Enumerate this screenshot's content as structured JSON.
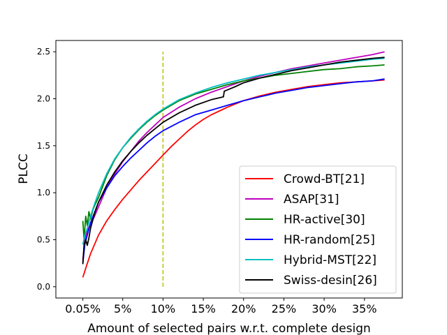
{
  "chart_data": {
    "type": "line",
    "title": "",
    "xlabel": "Amount of selected pairs w.r.t. complete design",
    "ylabel": "PLCC",
    "xlim": [
      -3.3,
      39.7
    ],
    "ylim": [
      -0.12,
      2.62
    ],
    "x_ticks": [
      {
        "value": 0.05,
        "label": "0.05%"
      },
      {
        "value": 5,
        "label": "5%"
      },
      {
        "value": 10,
        "label": "10%"
      },
      {
        "value": 15,
        "label": "15%"
      },
      {
        "value": 20,
        "label": "20%"
      },
      {
        "value": 25,
        "label": "25%"
      },
      {
        "value": 30,
        "label": "30%"
      },
      {
        "value": 35,
        "label": "35%"
      }
    ],
    "y_ticks": [
      {
        "value": 0.0,
        "label": "0.0"
      },
      {
        "value": 0.5,
        "label": "0.5"
      },
      {
        "value": 1.0,
        "label": "1.0"
      },
      {
        "value": 1.5,
        "label": "1.5"
      },
      {
        "value": 2.0,
        "label": "2.0"
      },
      {
        "value": 2.5,
        "label": "2.5"
      }
    ],
    "reference_line": {
      "x": 10,
      "y_range": [
        0,
        2.5
      ],
      "color": "#bfbf00",
      "style": "dashed"
    },
    "legend_position": "lower-right",
    "series": [
      {
        "name": "Crowd-BT[21]",
        "color": "#ff0000",
        "x": [
          0.05,
          0.5,
          1,
          2,
          3,
          4,
          5,
          6,
          7,
          8,
          9,
          10,
          11,
          12,
          13,
          14,
          15,
          16,
          17,
          18,
          20,
          22,
          24,
          26,
          28,
          30,
          32,
          34,
          36,
          37.5
        ],
        "y": [
          0.1,
          0.22,
          0.35,
          0.55,
          0.7,
          0.82,
          0.93,
          1.03,
          1.13,
          1.22,
          1.31,
          1.4,
          1.49,
          1.57,
          1.65,
          1.72,
          1.78,
          1.83,
          1.87,
          1.91,
          1.98,
          2.03,
          2.07,
          2.1,
          2.13,
          2.15,
          2.17,
          2.18,
          2.19,
          2.2
        ]
      },
      {
        "name": "ASAP[31]",
        "color": "#bf00bf",
        "x": [
          0.05,
          0.3,
          0.6,
          1,
          1.5,
          2,
          3,
          4,
          5,
          6,
          7,
          8,
          9,
          10,
          12,
          14,
          16,
          18,
          20,
          22,
          24,
          26,
          28,
          30,
          32,
          34,
          36,
          37.5
        ],
        "y": [
          0.28,
          0.5,
          0.6,
          0.66,
          0.75,
          0.85,
          1.05,
          1.2,
          1.33,
          1.44,
          1.55,
          1.64,
          1.72,
          1.8,
          1.91,
          2.0,
          2.07,
          2.13,
          2.19,
          2.24,
          2.28,
          2.32,
          2.35,
          2.38,
          2.41,
          2.44,
          2.47,
          2.5
        ]
      },
      {
        "name": "HR-active[30]",
        "color": "#008000",
        "x": [
          0.05,
          0.2,
          0.4,
          0.6,
          0.8,
          1.0,
          1.3,
          1.6,
          2,
          3,
          4,
          5,
          6,
          7,
          8,
          9,
          10,
          12,
          14,
          16,
          18,
          20,
          22,
          24,
          26,
          28,
          30,
          32,
          34,
          36,
          37.5
        ],
        "y": [
          0.7,
          0.5,
          0.75,
          0.65,
          0.8,
          0.72,
          0.82,
          0.88,
          0.95,
          1.18,
          1.35,
          1.48,
          1.58,
          1.67,
          1.75,
          1.82,
          1.88,
          1.98,
          2.05,
          2.1,
          2.15,
          2.19,
          2.22,
          2.25,
          2.27,
          2.29,
          2.31,
          2.32,
          2.34,
          2.35,
          2.36
        ]
      },
      {
        "name": "HR-random[25]",
        "color": "#0000ff",
        "x": [
          0.05,
          0.3,
          0.6,
          1,
          2,
          3,
          4,
          5,
          6,
          7,
          8,
          9,
          10,
          12,
          14,
          16,
          18,
          20,
          22,
          24,
          26,
          28,
          30,
          32,
          34,
          36,
          37.5
        ],
        "y": [
          0.25,
          0.45,
          0.55,
          0.68,
          0.9,
          1.05,
          1.18,
          1.28,
          1.37,
          1.45,
          1.53,
          1.6,
          1.66,
          1.75,
          1.83,
          1.88,
          1.93,
          1.98,
          2.02,
          2.06,
          2.09,
          2.12,
          2.14,
          2.16,
          2.18,
          2.19,
          2.21
        ]
      },
      {
        "name": "Hybrid-MST[22]",
        "color": "#00bfbf",
        "x": [
          0.05,
          0.3,
          0.6,
          1,
          1.5,
          2,
          3,
          4,
          5,
          6,
          7,
          8,
          9,
          10,
          12,
          14,
          16,
          18,
          20,
          22,
          24,
          26,
          28,
          30,
          32,
          34,
          36,
          37.5
        ],
        "y": [
          0.45,
          0.55,
          0.62,
          0.75,
          0.88,
          1.0,
          1.2,
          1.36,
          1.48,
          1.59,
          1.68,
          1.76,
          1.83,
          1.89,
          1.99,
          2.06,
          2.12,
          2.17,
          2.21,
          2.25,
          2.28,
          2.31,
          2.34,
          2.36,
          2.38,
          2.4,
          2.42,
          2.43
        ]
      },
      {
        "name": "Swiss-desin[26]",
        "color": "#000000",
        "x": [
          0.05,
          0.2,
          0.4,
          0.6,
          0.8,
          1,
          1.5,
          2,
          3,
          4,
          5,
          6,
          7,
          8,
          9,
          10,
          12,
          14,
          16,
          17.5,
          17.6,
          19,
          20,
          22,
          24,
          26,
          28,
          30,
          32,
          34,
          36,
          37.5
        ],
        "y": [
          0.24,
          0.45,
          0.5,
          0.44,
          0.52,
          0.62,
          0.78,
          0.9,
          1.08,
          1.22,
          1.34,
          1.44,
          1.53,
          1.61,
          1.68,
          1.75,
          1.85,
          1.93,
          1.99,
          2.02,
          2.08,
          2.13,
          2.17,
          2.22,
          2.26,
          2.3,
          2.33,
          2.36,
          2.39,
          2.41,
          2.43,
          2.44
        ]
      }
    ]
  }
}
